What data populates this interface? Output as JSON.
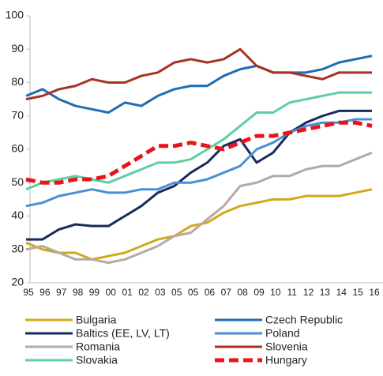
{
  "chart_data": {
    "type": "line",
    "categories": [
      "95",
      "96",
      "97",
      "98",
      "99",
      "00",
      "01",
      "02",
      "03",
      "05",
      "05",
      "06",
      "07",
      "08",
      "09",
      "10",
      "11",
      "12",
      "13",
      "14",
      "15",
      "16"
    ],
    "ylim": [
      20,
      100
    ],
    "yticks": [
      20,
      30,
      40,
      50,
      60,
      70,
      80,
      90,
      100
    ],
    "series": [
      {
        "name": "Bulgaria",
        "color": "#d4a81c",
        "values": [
          32,
          30,
          29,
          29,
          27,
          28,
          29,
          31,
          33,
          34,
          37,
          38,
          41,
          43,
          44,
          45,
          45,
          46,
          46,
          46,
          47,
          48
        ]
      },
      {
        "name": "Czech Republic",
        "color": "#1f6db5",
        "values": [
          76,
          78,
          75,
          73,
          72,
          71,
          74,
          73,
          76,
          78,
          79,
          79,
          82,
          84,
          85,
          83,
          83,
          83,
          84,
          86,
          87,
          88
        ]
      },
      {
        "name": "Baltics (EE, LV, LT)",
        "color": "#1a2a5c",
        "values": [
          33,
          33,
          36,
          37.5,
          37,
          37,
          40,
          43,
          47,
          49,
          53,
          56,
          61,
          63,
          56,
          59,
          65,
          68,
          70,
          71.5,
          71.5,
          71.5
        ]
      },
      {
        "name": "Poland",
        "color": "#4a8fd6",
        "values": [
          43,
          44,
          46,
          47,
          48,
          47,
          47,
          48,
          48,
          50,
          50,
          51,
          53,
          55,
          60,
          62,
          65,
          67,
          68,
          68,
          69,
          69
        ]
      },
      {
        "name": "Romania",
        "color": "#b5aaa2",
        "values": [
          30,
          31,
          29,
          27,
          27,
          26,
          27,
          29,
          31,
          34,
          35,
          39,
          43,
          49,
          50,
          52,
          52,
          54,
          55,
          55,
          57,
          59
        ]
      },
      {
        "name": "Slovenia",
        "color": "#a83222",
        "values": [
          75,
          76,
          78,
          79,
          81,
          80,
          80,
          82,
          83,
          86,
          87,
          86,
          87,
          90,
          85,
          83,
          83,
          82,
          81,
          83,
          83,
          83
        ]
      },
      {
        "name": "Slovakia",
        "color": "#5ecf9e",
        "values": [
          48,
          50,
          51,
          52,
          51,
          50,
          52,
          54,
          56,
          56,
          57,
          60,
          63,
          67,
          71,
          71,
          74,
          75,
          76,
          77,
          77,
          77
        ]
      },
      {
        "name": "Hungary",
        "color": "#e8141a",
        "dashed": true,
        "values": [
          51,
          50,
          50,
          51,
          51,
          52,
          55,
          58,
          61,
          61,
          62,
          61,
          60,
          62,
          64,
          64,
          65,
          66,
          67,
          68,
          68,
          67
        ]
      }
    ]
  }
}
